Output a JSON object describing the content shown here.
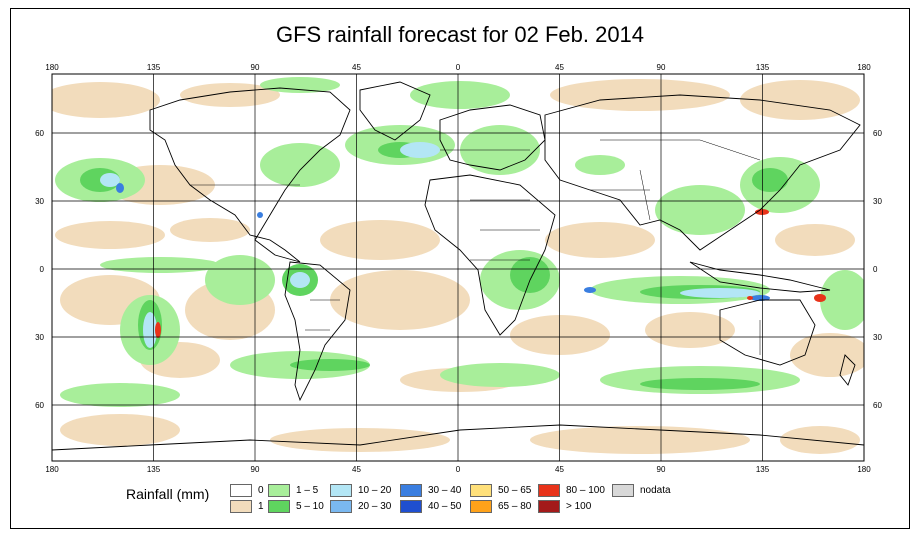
{
  "title": "GFS rainfall forecast for 02 Feb. 2014",
  "map": {
    "lon_ticks_top": [
      "180",
      "135",
      "90",
      "45",
      "0",
      "45",
      "90",
      "135",
      "180"
    ],
    "lon_ticks_bottom": [
      "180",
      "135",
      "90",
      "45",
      "0",
      "45",
      "90",
      "135",
      "180"
    ],
    "lat_ticks_left": [
      "60",
      "30",
      "0",
      "30",
      "60"
    ],
    "lat_ticks_right": [
      "60",
      "30",
      "0",
      "30",
      "60"
    ]
  },
  "legend": {
    "title": "Rainfall (mm)",
    "items": [
      {
        "label": "0",
        "color": "#ffffff"
      },
      {
        "label": "1",
        "color": "#f2dcbc"
      },
      {
        "label": "1 – 5",
        "color": "#a8ee9a"
      },
      {
        "label": "5 – 10",
        "color": "#5fd45f"
      },
      {
        "label": "10 – 20",
        "color": "#b3e6f5"
      },
      {
        "label": "20 – 30",
        "color": "#7ab8f0"
      },
      {
        "label": "30 – 40",
        "color": "#3a7ee0"
      },
      {
        "label": "40 – 50",
        "color": "#1f4fd0"
      },
      {
        "label": "50 – 65",
        "color": "#ffe07a"
      },
      {
        "label": "65 – 80",
        "color": "#ffa21a"
      },
      {
        "label": "80 – 100",
        "color": "#e8331a"
      },
      {
        "label": "> 100",
        "color": "#a31a1a"
      },
      {
        "label": "nodata",
        "color": "#d8d8d8"
      }
    ]
  }
}
